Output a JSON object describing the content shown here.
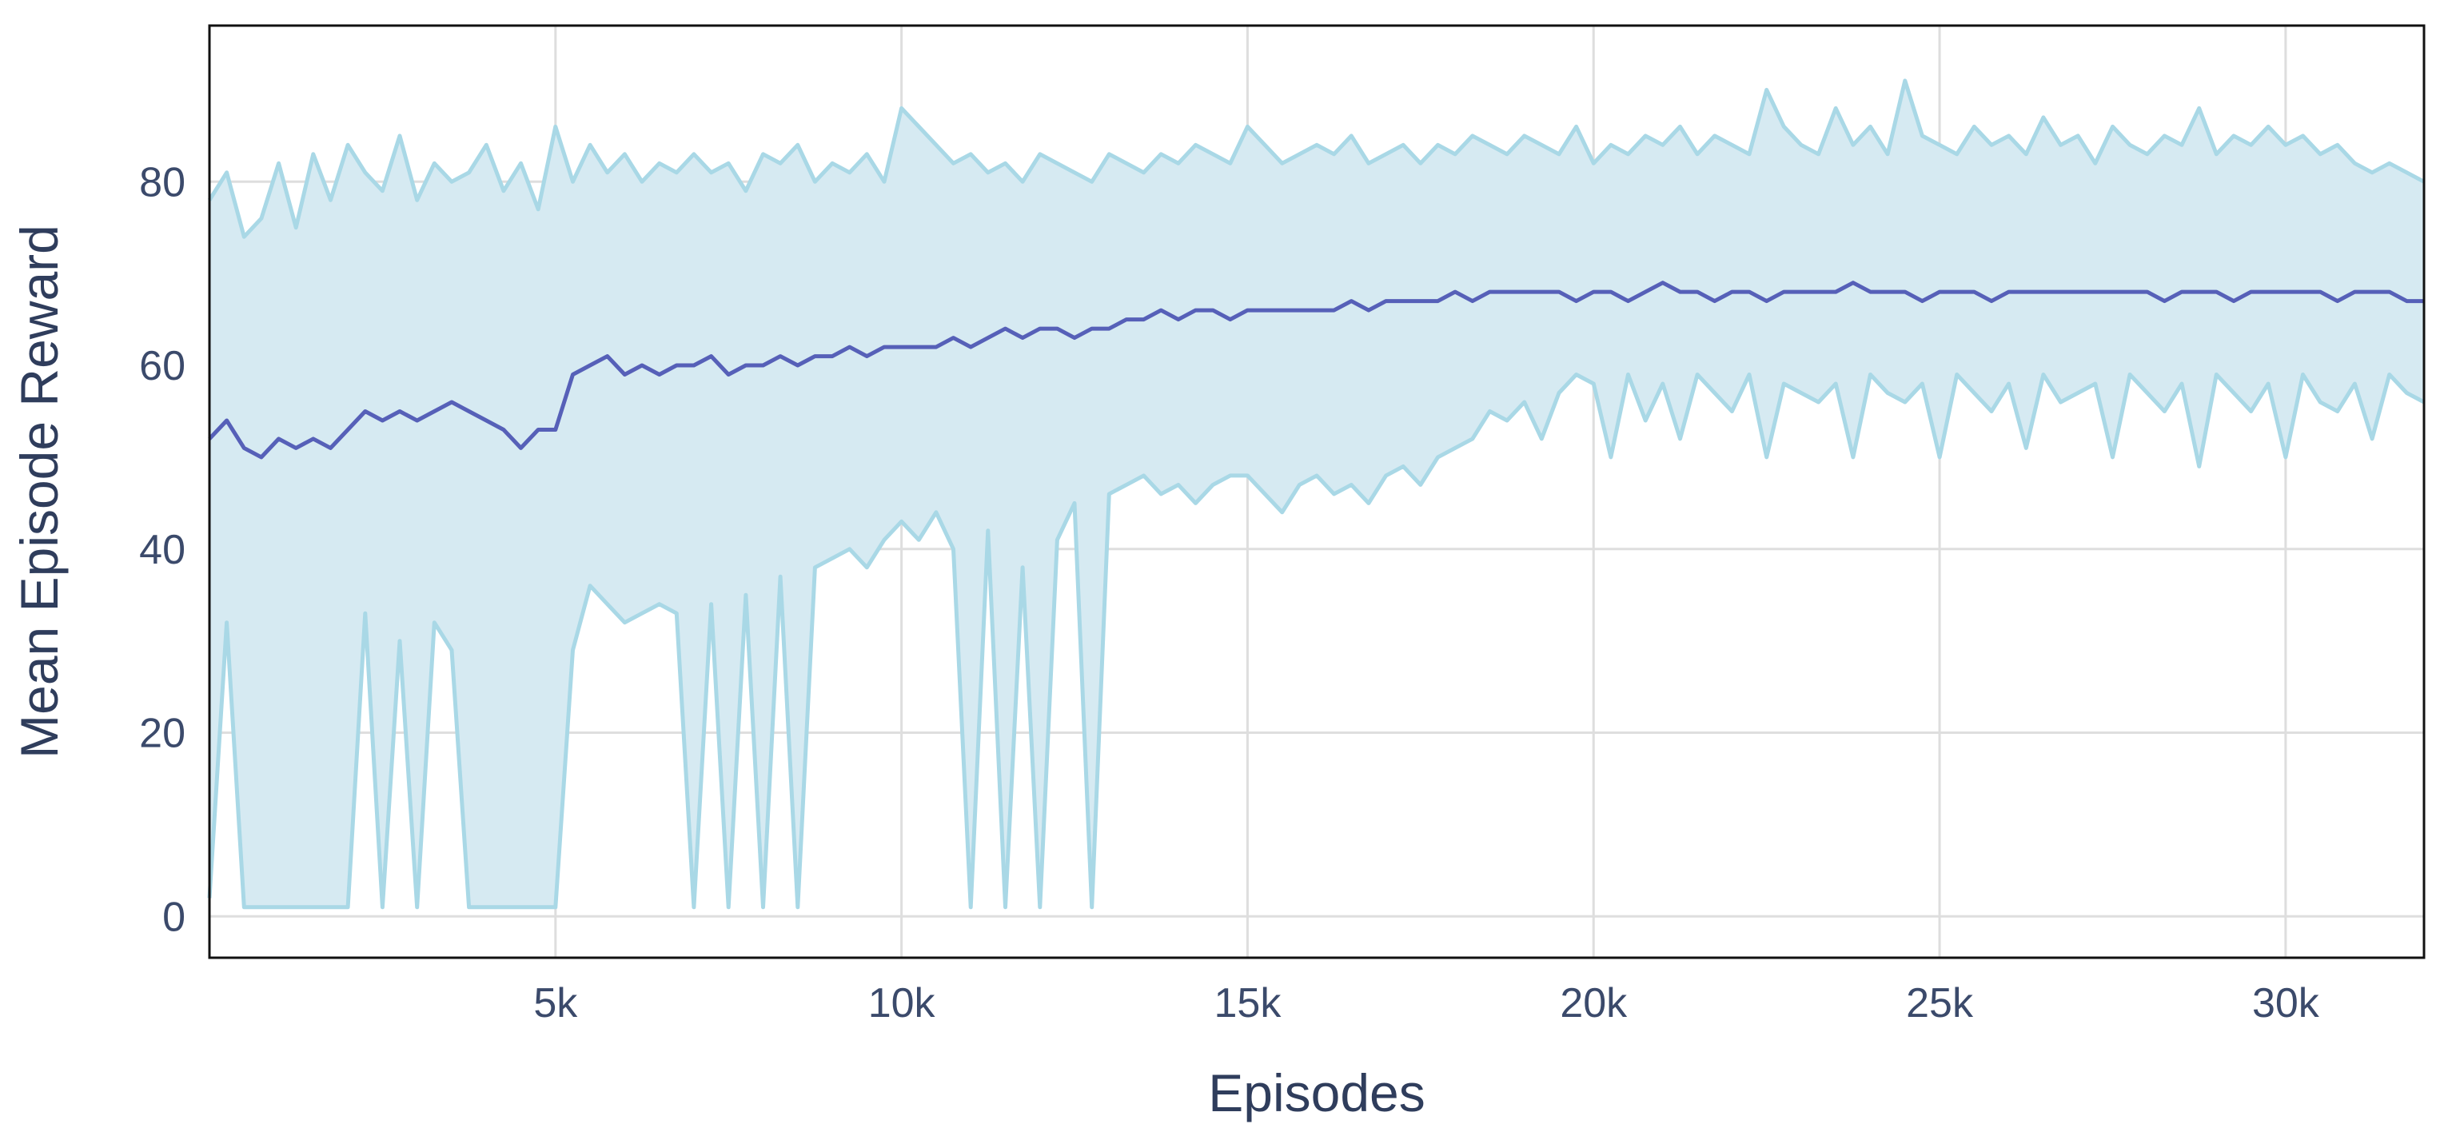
{
  "chart_data": {
    "type": "line",
    "title": "",
    "xlabel": "Episodes",
    "ylabel": "Mean Episode Reward",
    "xlim": [
      0,
      32000
    ],
    "ylim": [
      -4.5,
      97
    ],
    "x_ticks": [
      5000,
      10000,
      15000,
      20000,
      25000,
      30000
    ],
    "x_tick_labels": [
      "5k",
      "10k",
      "15k",
      "20k",
      "25k",
      "30k"
    ],
    "y_ticks": [
      0,
      20,
      40,
      60,
      80
    ],
    "y_tick_labels": [
      "0",
      "20",
      "40",
      "60",
      "80"
    ],
    "grid": true,
    "legend": "none",
    "colors": {
      "mean_line": "#5660b8",
      "band_fill": "#d6eaf2",
      "band_edge": "#a9d8e6",
      "grid": "#dedede",
      "frame": "#111111"
    },
    "x": [
      0,
      250,
      500,
      750,
      1000,
      1250,
      1500,
      1750,
      2000,
      2250,
      2500,
      2750,
      3000,
      3250,
      3500,
      3750,
      4000,
      4250,
      4500,
      4750,
      5000,
      5250,
      5500,
      5750,
      6000,
      6250,
      6500,
      6750,
      7000,
      7250,
      7500,
      7750,
      8000,
      8250,
      8500,
      8750,
      9000,
      9250,
      9500,
      9750,
      10000,
      10250,
      10500,
      10750,
      11000,
      11250,
      11500,
      11750,
      12000,
      12250,
      12500,
      12750,
      13000,
      13250,
      13500,
      13750,
      14000,
      14250,
      14500,
      14750,
      15000,
      15250,
      15500,
      15750,
      16000,
      16250,
      16500,
      16750,
      17000,
      17250,
      17500,
      17750,
      18000,
      18250,
      18500,
      18750,
      19000,
      19250,
      19500,
      19750,
      20000,
      20250,
      20500,
      20750,
      21000,
      21250,
      21500,
      21750,
      22000,
      22250,
      22500,
      22750,
      23000,
      23250,
      23500,
      23750,
      24000,
      24250,
      24500,
      24750,
      25000,
      25250,
      25500,
      25750,
      26000,
      26250,
      26500,
      26750,
      27000,
      27250,
      27500,
      27750,
      28000,
      28250,
      28500,
      28750,
      29000,
      29250,
      29500,
      29750,
      30000,
      30250,
      30500,
      30750,
      31000,
      31250,
      31500,
      31750,
      32000
    ],
    "series": [
      {
        "role": "mean",
        "values": [
          52,
          54,
          51,
          50,
          52,
          51,
          52,
          51,
          53,
          55,
          54,
          55,
          54,
          55,
          56,
          55,
          54,
          53,
          51,
          53,
          53,
          59,
          60,
          61,
          59,
          60,
          59,
          60,
          60,
          61,
          59,
          60,
          60,
          61,
          60,
          61,
          61,
          62,
          61,
          62,
          62,
          62,
          62,
          63,
          62,
          63,
          64,
          63,
          64,
          64,
          63,
          64,
          64,
          65,
          65,
          66,
          65,
          66,
          66,
          65,
          66,
          66,
          66,
          66,
          66,
          66,
          67,
          66,
          67,
          67,
          67,
          67,
          68,
          67,
          68,
          68,
          68,
          68,
          68,
          67,
          68,
          68,
          67,
          68,
          69,
          68,
          68,
          67,
          68,
          68,
          67,
          68,
          68,
          68,
          68,
          69,
          68,
          68,
          68,
          67,
          68,
          68,
          68,
          67,
          68,
          68,
          68,
          68,
          68,
          68,
          68,
          68,
          68,
          67,
          68,
          68,
          68,
          67,
          68,
          68,
          68,
          68,
          68,
          67,
          68,
          68,
          68,
          67,
          67
        ]
      },
      {
        "role": "upper",
        "values": [
          78,
          81,
          74,
          76,
          82,
          75,
          83,
          78,
          84,
          81,
          79,
          85,
          78,
          82,
          80,
          81,
          84,
          79,
          82,
          77,
          86,
          80,
          84,
          81,
          83,
          80,
          82,
          81,
          83,
          81,
          82,
          79,
          83,
          82,
          84,
          80,
          82,
          81,
          83,
          80,
          88,
          86,
          84,
          82,
          83,
          81,
          82,
          80,
          83,
          82,
          81,
          80,
          83,
          82,
          81,
          83,
          82,
          84,
          83,
          82,
          86,
          84,
          82,
          83,
          84,
          83,
          85,
          82,
          83,
          84,
          82,
          84,
          83,
          85,
          84,
          83,
          85,
          84,
          83,
          86,
          82,
          84,
          83,
          85,
          84,
          86,
          83,
          85,
          84,
          83,
          90,
          86,
          84,
          83,
          88,
          84,
          86,
          83,
          91,
          85,
          84,
          83,
          86,
          84,
          85,
          83,
          87,
          84,
          85,
          82,
          86,
          84,
          83,
          85,
          84,
          88,
          83,
          85,
          84,
          86,
          84,
          85,
          83,
          84,
          82,
          81,
          82,
          81,
          80
        ]
      },
      {
        "role": "lower",
        "values": [
          2,
          32,
          1,
          1,
          1,
          1,
          1,
          1,
          1,
          33,
          1,
          30,
          1,
          32,
          29,
          1,
          1,
          1,
          1,
          1,
          1,
          29,
          36,
          34,
          32,
          33,
          34,
          33,
          1,
          34,
          1,
          35,
          1,
          37,
          1,
          38,
          39,
          40,
          38,
          41,
          43,
          41,
          44,
          40,
          1,
          42,
          1,
          38,
          1,
          41,
          45,
          1,
          46,
          47,
          48,
          46,
          47,
          45,
          47,
          48,
          48,
          46,
          44,
          47,
          48,
          46,
          47,
          45,
          48,
          49,
          47,
          50,
          51,
          52,
          55,
          54,
          56,
          52,
          57,
          59,
          58,
          50,
          59,
          54,
          58,
          52,
          59,
          57,
          55,
          59,
          50,
          58,
          57,
          56,
          58,
          50,
          59,
          57,
          56,
          58,
          50,
          59,
          57,
          55,
          58,
          51,
          59,
          56,
          57,
          58,
          50,
          59,
          57,
          55,
          58,
          49,
          59,
          57,
          55,
          58,
          50,
          59,
          56,
          55,
          58,
          52,
          59,
          57,
          56
        ]
      }
    ]
  }
}
